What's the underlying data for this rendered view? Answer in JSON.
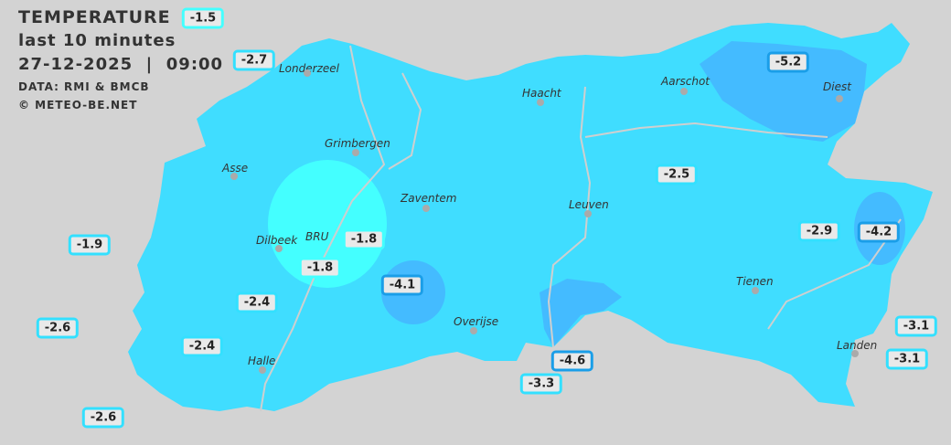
{
  "header": {
    "title": "TEMPERATURE",
    "subtitle": "last 10 minutes",
    "datetime": "27-12-2025  |  09:00",
    "source": "DATA: RMI & BMCB",
    "copyright": "© METEO-BE.NET"
  },
  "colors": {
    "background": "#d3d3d3",
    "base_region": "#40ddff",
    "warm_zone": "#44ffff",
    "cold_zone": "#44bbff",
    "label_border": "#33e0ff"
  },
  "cities": [
    {
      "name": "Londerzeel"
    },
    {
      "name": "Haacht"
    },
    {
      "name": "Aarschot"
    },
    {
      "name": "Diest"
    },
    {
      "name": "Grimbergen"
    },
    {
      "name": "Asse"
    },
    {
      "name": "Zaventem"
    },
    {
      "name": "Leuven"
    },
    {
      "name": "Dilbeek"
    },
    {
      "name": "BRU"
    },
    {
      "name": "Tienen"
    },
    {
      "name": "Overijse"
    },
    {
      "name": "Halle"
    },
    {
      "name": "Landen"
    }
  ],
  "stations": [
    {
      "value": "-1.5"
    },
    {
      "value": "-2.7"
    },
    {
      "value": "-5.2"
    },
    {
      "value": "-2.5"
    },
    {
      "value": "-1.9"
    },
    {
      "value": "-1.8"
    },
    {
      "value": "-1.8"
    },
    {
      "value": "-2.9"
    },
    {
      "value": "-4.2"
    },
    {
      "value": "-4.1"
    },
    {
      "value": "-2.4"
    },
    {
      "value": "-2.6"
    },
    {
      "value": "-2.4"
    },
    {
      "value": "-4.6"
    },
    {
      "value": "-3.3"
    },
    {
      "value": "-3.1"
    },
    {
      "value": "-3.1"
    },
    {
      "value": "-2.6"
    }
  ]
}
